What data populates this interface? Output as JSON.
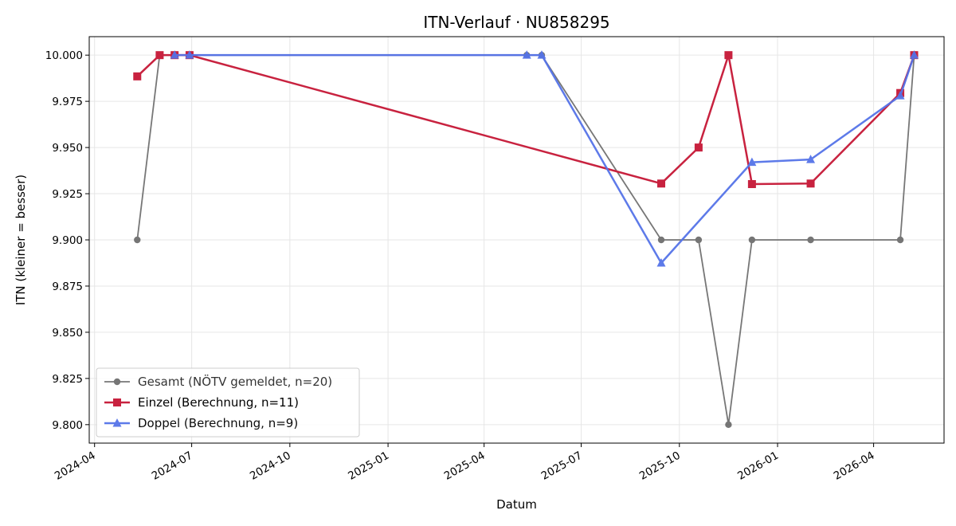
{
  "chart_data": {
    "type": "line",
    "title": "ITN-Verlauf · NU858295",
    "xlabel": "Datum",
    "ylabel": "ITN  (kleiner = besser)",
    "x_ticks": [
      "2024-04",
      "2024-07",
      "2024-10",
      "2025-01",
      "2025-04",
      "2025-07",
      "2025-10",
      "2026-01",
      "2026-04"
    ],
    "y_ticks": [
      "9.800",
      "9.825",
      "9.850",
      "9.875",
      "9.900",
      "9.925",
      "9.950",
      "9.975",
      "10.000"
    ],
    "xlim": [
      "2024-03-27",
      "2026-06-06"
    ],
    "ylim": [
      9.79,
      10.01
    ],
    "grid": true,
    "legend_position": "lower-left",
    "series": [
      {
        "name": "Gesamt (NÖTV gemeldet, n=20)",
        "color": "#555555",
        "marker": "circle",
        "x": [
          "2024-05-11",
          "2024-06-01",
          "2024-06-15",
          "2024-06-29",
          "2025-05-11",
          "2025-05-25",
          "2025-09-14",
          "2025-10-19",
          "2025-11-16",
          "2025-12-08",
          "2026-02-01",
          "2026-04-26",
          "2026-05-09"
        ],
        "y": [
          9.9,
          10.0,
          10.0,
          10.0,
          10.0,
          10.0,
          9.9,
          9.9,
          9.8,
          9.9,
          9.9,
          9.9,
          10.0
        ]
      },
      {
        "name": "Einzel (Berechnung, n=11)",
        "color": "#c8223f",
        "marker": "square",
        "x": [
          "2024-05-11",
          "2024-06-01",
          "2024-06-15",
          "2024-06-29",
          "2025-09-14",
          "2025-10-19",
          "2025-11-16",
          "2025-12-08",
          "2026-02-01",
          "2026-04-26",
          "2026-05-09"
        ],
        "y": [
          9.9885,
          10.0,
          10.0,
          10.0,
          9.9305,
          9.95,
          10.0,
          9.9302,
          9.9305,
          9.9795,
          10.0
        ]
      },
      {
        "name": "Doppel (Berechnung, n=9)",
        "color": "#5573e8",
        "marker": "triangle",
        "x": [
          "2024-06-15",
          "2024-06-29",
          "2025-05-11",
          "2025-05-25",
          "2025-09-14",
          "2025-12-08",
          "2026-02-01",
          "2026-04-26",
          "2026-05-09"
        ],
        "y": [
          10.0,
          10.0,
          10.0,
          10.0,
          9.8875,
          9.942,
          9.9435,
          9.978,
          10.0
        ]
      }
    ]
  }
}
